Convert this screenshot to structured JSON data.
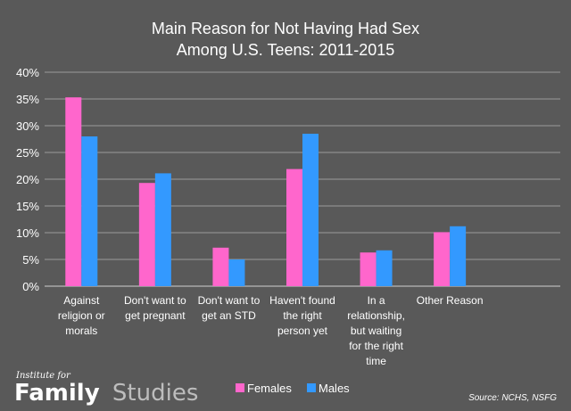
{
  "chart_data": {
    "type": "bar",
    "title": [
      "Main Reason for Not Having Had Sex",
      "Among U.S. Teens: 2011-2015"
    ],
    "categories": [
      [
        "Against",
        "religion or",
        "morals"
      ],
      [
        "Don't want to",
        "get pregnant"
      ],
      [
        "Don't want to",
        "get an STD"
      ],
      [
        "Haven't found",
        "the right",
        "person yet"
      ],
      [
        "In a",
        "relationship,",
        "but waiting",
        "for the right",
        "time"
      ],
      [
        "Other Reason"
      ]
    ],
    "series": [
      {
        "name": "Females",
        "color": "#ff66cc",
        "values": [
          35.3,
          19.3,
          7.2,
          21.9,
          6.3,
          10.1
        ]
      },
      {
        "name": "Males",
        "color": "#3399ff",
        "values": [
          28.0,
          21.1,
          5.0,
          28.5,
          6.7,
          11.2
        ]
      }
    ],
    "ylim": [
      0,
      40
    ],
    "yticks": [
      "0%",
      "5%",
      "10%",
      "15%",
      "20%",
      "25%",
      "30%",
      "35%",
      "40%"
    ],
    "legend_position": "bottom",
    "source": "Source: NCHS, NSFG"
  },
  "brand": {
    "small": "Institute for",
    "word1": "Family",
    "word2": "Studies",
    "word1_color": "#ffffff",
    "word2_color": "#bdbdbd"
  }
}
